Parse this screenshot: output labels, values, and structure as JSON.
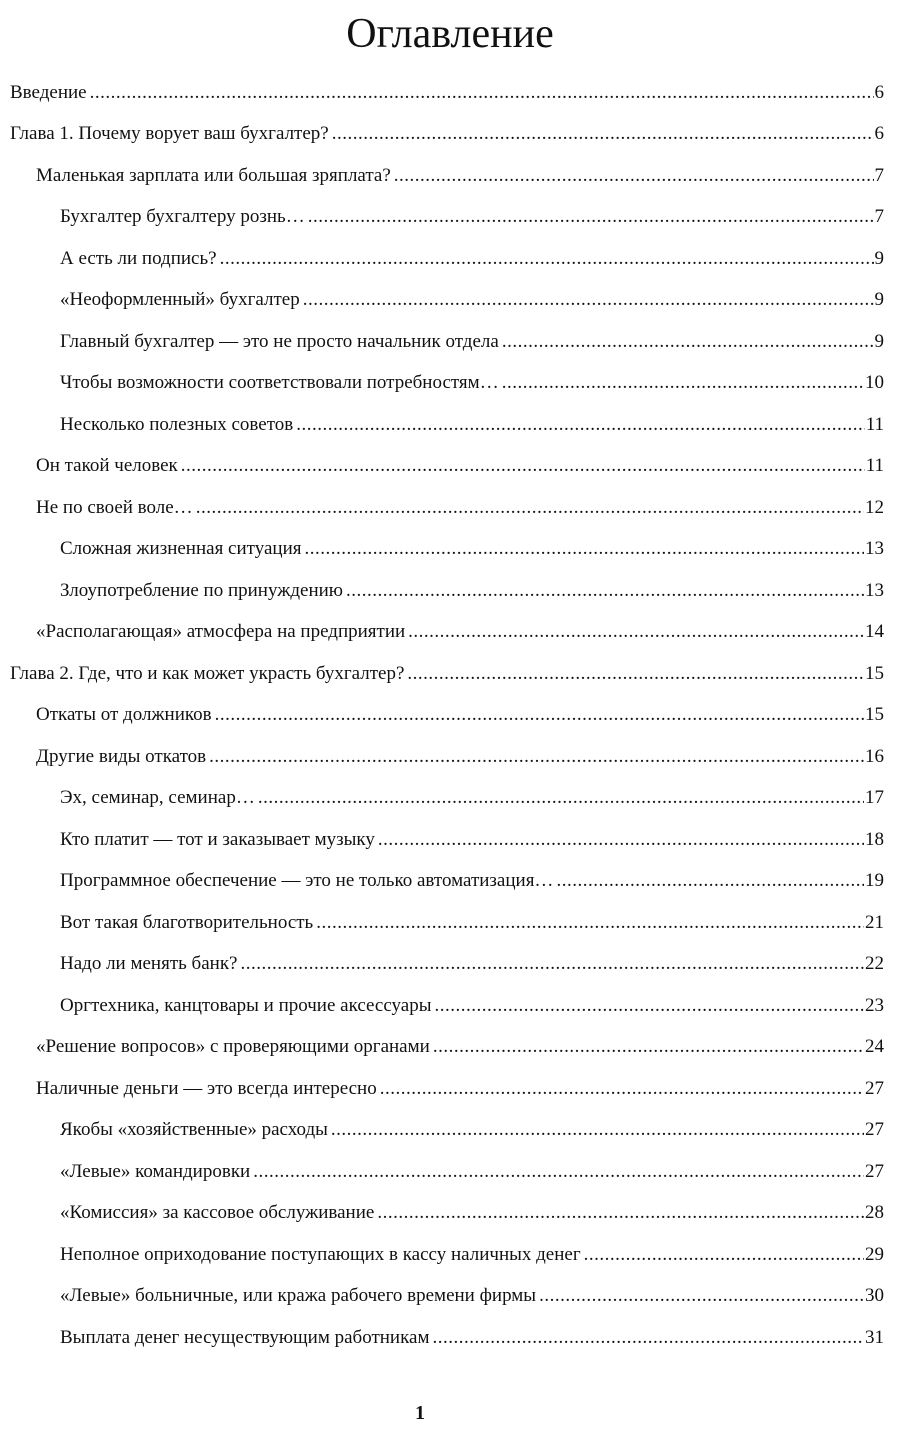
{
  "title": "Оглавление",
  "entries": [
    {
      "level": 0,
      "text": "Введение",
      "page": "6"
    },
    {
      "level": 0,
      "text": "Глава 1. Почему ворует ваш бухгалтер?",
      "page": "6"
    },
    {
      "level": 1,
      "text": "Маленькая зарплата или большая зряплата?",
      "page": "7"
    },
    {
      "level": 2,
      "text": "Бухгалтер бухгалтеру рознь…",
      "page": "7"
    },
    {
      "level": 2,
      "text": "А есть ли подпись?",
      "page": "9"
    },
    {
      "level": 2,
      "text": "«Неоформленный» бухгалтер",
      "page": "9"
    },
    {
      "level": 2,
      "text": "Главный бухгалтер — это не просто начальник отдела",
      "page": "9"
    },
    {
      "level": 2,
      "text": "Чтобы возможности соответствовали потребностям…",
      "page": "10"
    },
    {
      "level": 2,
      "text": "Несколько полезных советов",
      "page": "11"
    },
    {
      "level": 1,
      "text": "Он такой человек",
      "page": "11"
    },
    {
      "level": 1,
      "text": "Не по своей воле…",
      "page": "12"
    },
    {
      "level": 2,
      "text": "Сложная жизненная ситуация",
      "page": "13"
    },
    {
      "level": 2,
      "text": "Злоупотребление по принуждению",
      "page": "13"
    },
    {
      "level": 1,
      "text": "«Располагающая» атмосфера на предприятии",
      "page": "14"
    },
    {
      "level": 0,
      "text": "Глава 2. Где, что и как может украсть бухгалтер?",
      "page": "15"
    },
    {
      "level": 1,
      "text": "Откаты от должников",
      "page": "15"
    },
    {
      "level": 1,
      "text": "Другие виды откатов",
      "page": "16"
    },
    {
      "level": 2,
      "text": "Эх, семинар, семинар…",
      "page": "17"
    },
    {
      "level": 2,
      "text": "Кто платит — тот и заказывает музыку",
      "page": "18"
    },
    {
      "level": 2,
      "text": "Программное обеспечение — это не только автоматизация…",
      "page": "19"
    },
    {
      "level": 2,
      "text": "Вот такая благотворительность",
      "page": "21"
    },
    {
      "level": 2,
      "text": "Надо ли менять банк?",
      "page": "22"
    },
    {
      "level": 2,
      "text": "Оргтехника, канцтовары и прочие аксессуары",
      "page": "23"
    },
    {
      "level": 1,
      "text": "«Решение вопросов» с проверяющими органами",
      "page": "24"
    },
    {
      "level": 1,
      "text": "Наличные деньги — это всегда интересно",
      "page": "27"
    },
    {
      "level": 2,
      "text": "Якобы «хозяйственные» расходы",
      "page": "27"
    },
    {
      "level": 2,
      "text": "«Левые» командировки",
      "page": "27"
    },
    {
      "level": 2,
      "text": "«Комиссия» за кассовое обслуживание",
      "page": "28"
    },
    {
      "level": 2,
      "text": "Неполное оприходование поступающих в кассу наличных денег",
      "page": "29"
    },
    {
      "level": 2,
      "text": "«Левые» больничные, или кража рабочего времени фирмы",
      "page": "30"
    },
    {
      "level": 2,
      "text": "Выплата денег несуществующим работникам",
      "page": "31"
    }
  ],
  "page_number": "1"
}
